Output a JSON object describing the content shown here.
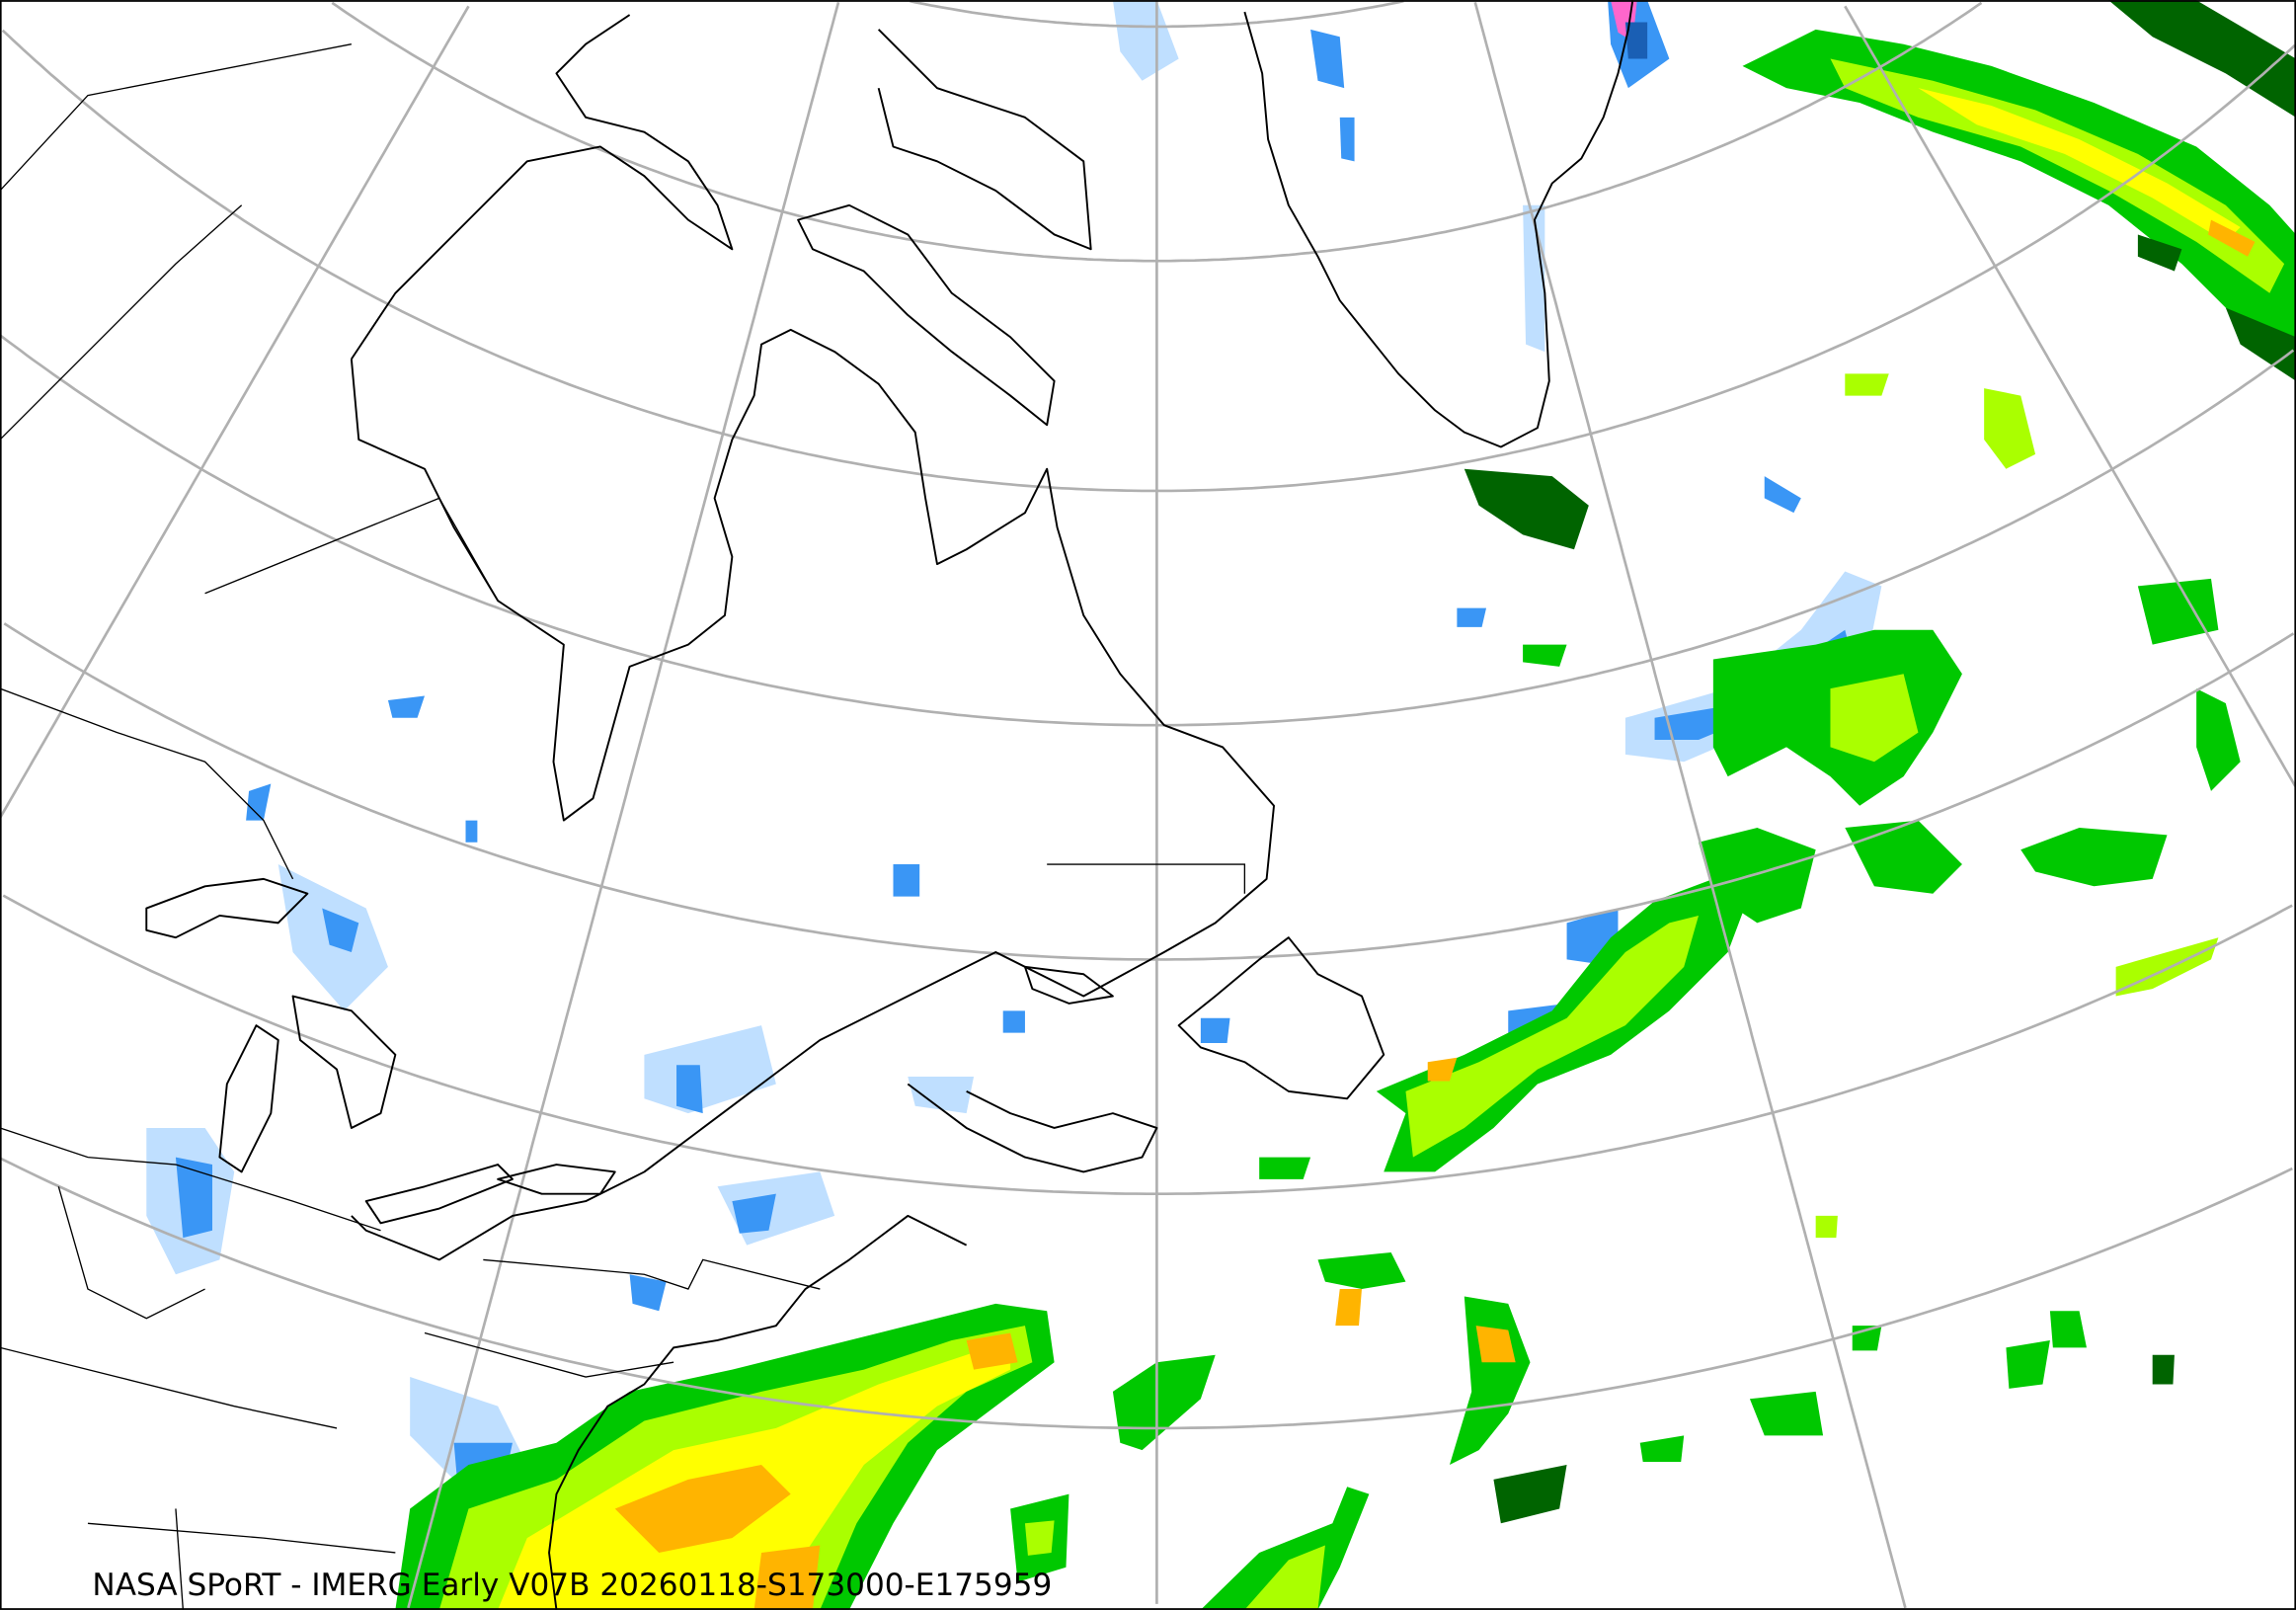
{
  "caption": "NASA SPoRT - IMERG Early V07B 20260118-S173000-E175959",
  "map": {
    "projection": "polar stereographic",
    "region": "Northeastern North America, Greenland and North Atlantic",
    "graticule": true,
    "graticule_color": "#b0b0b0"
  },
  "precip_colors": {
    "light_blue": "#bfdfff",
    "blue": "#3a96f5",
    "dark_blue": "#1a5fb4",
    "dark_green": "#006400",
    "green": "#00c800",
    "light_green": "#66ee00",
    "lime": "#aaff00",
    "yellow": "#ffff00",
    "orange": "#ffb400",
    "pink": "#ff66cc"
  }
}
